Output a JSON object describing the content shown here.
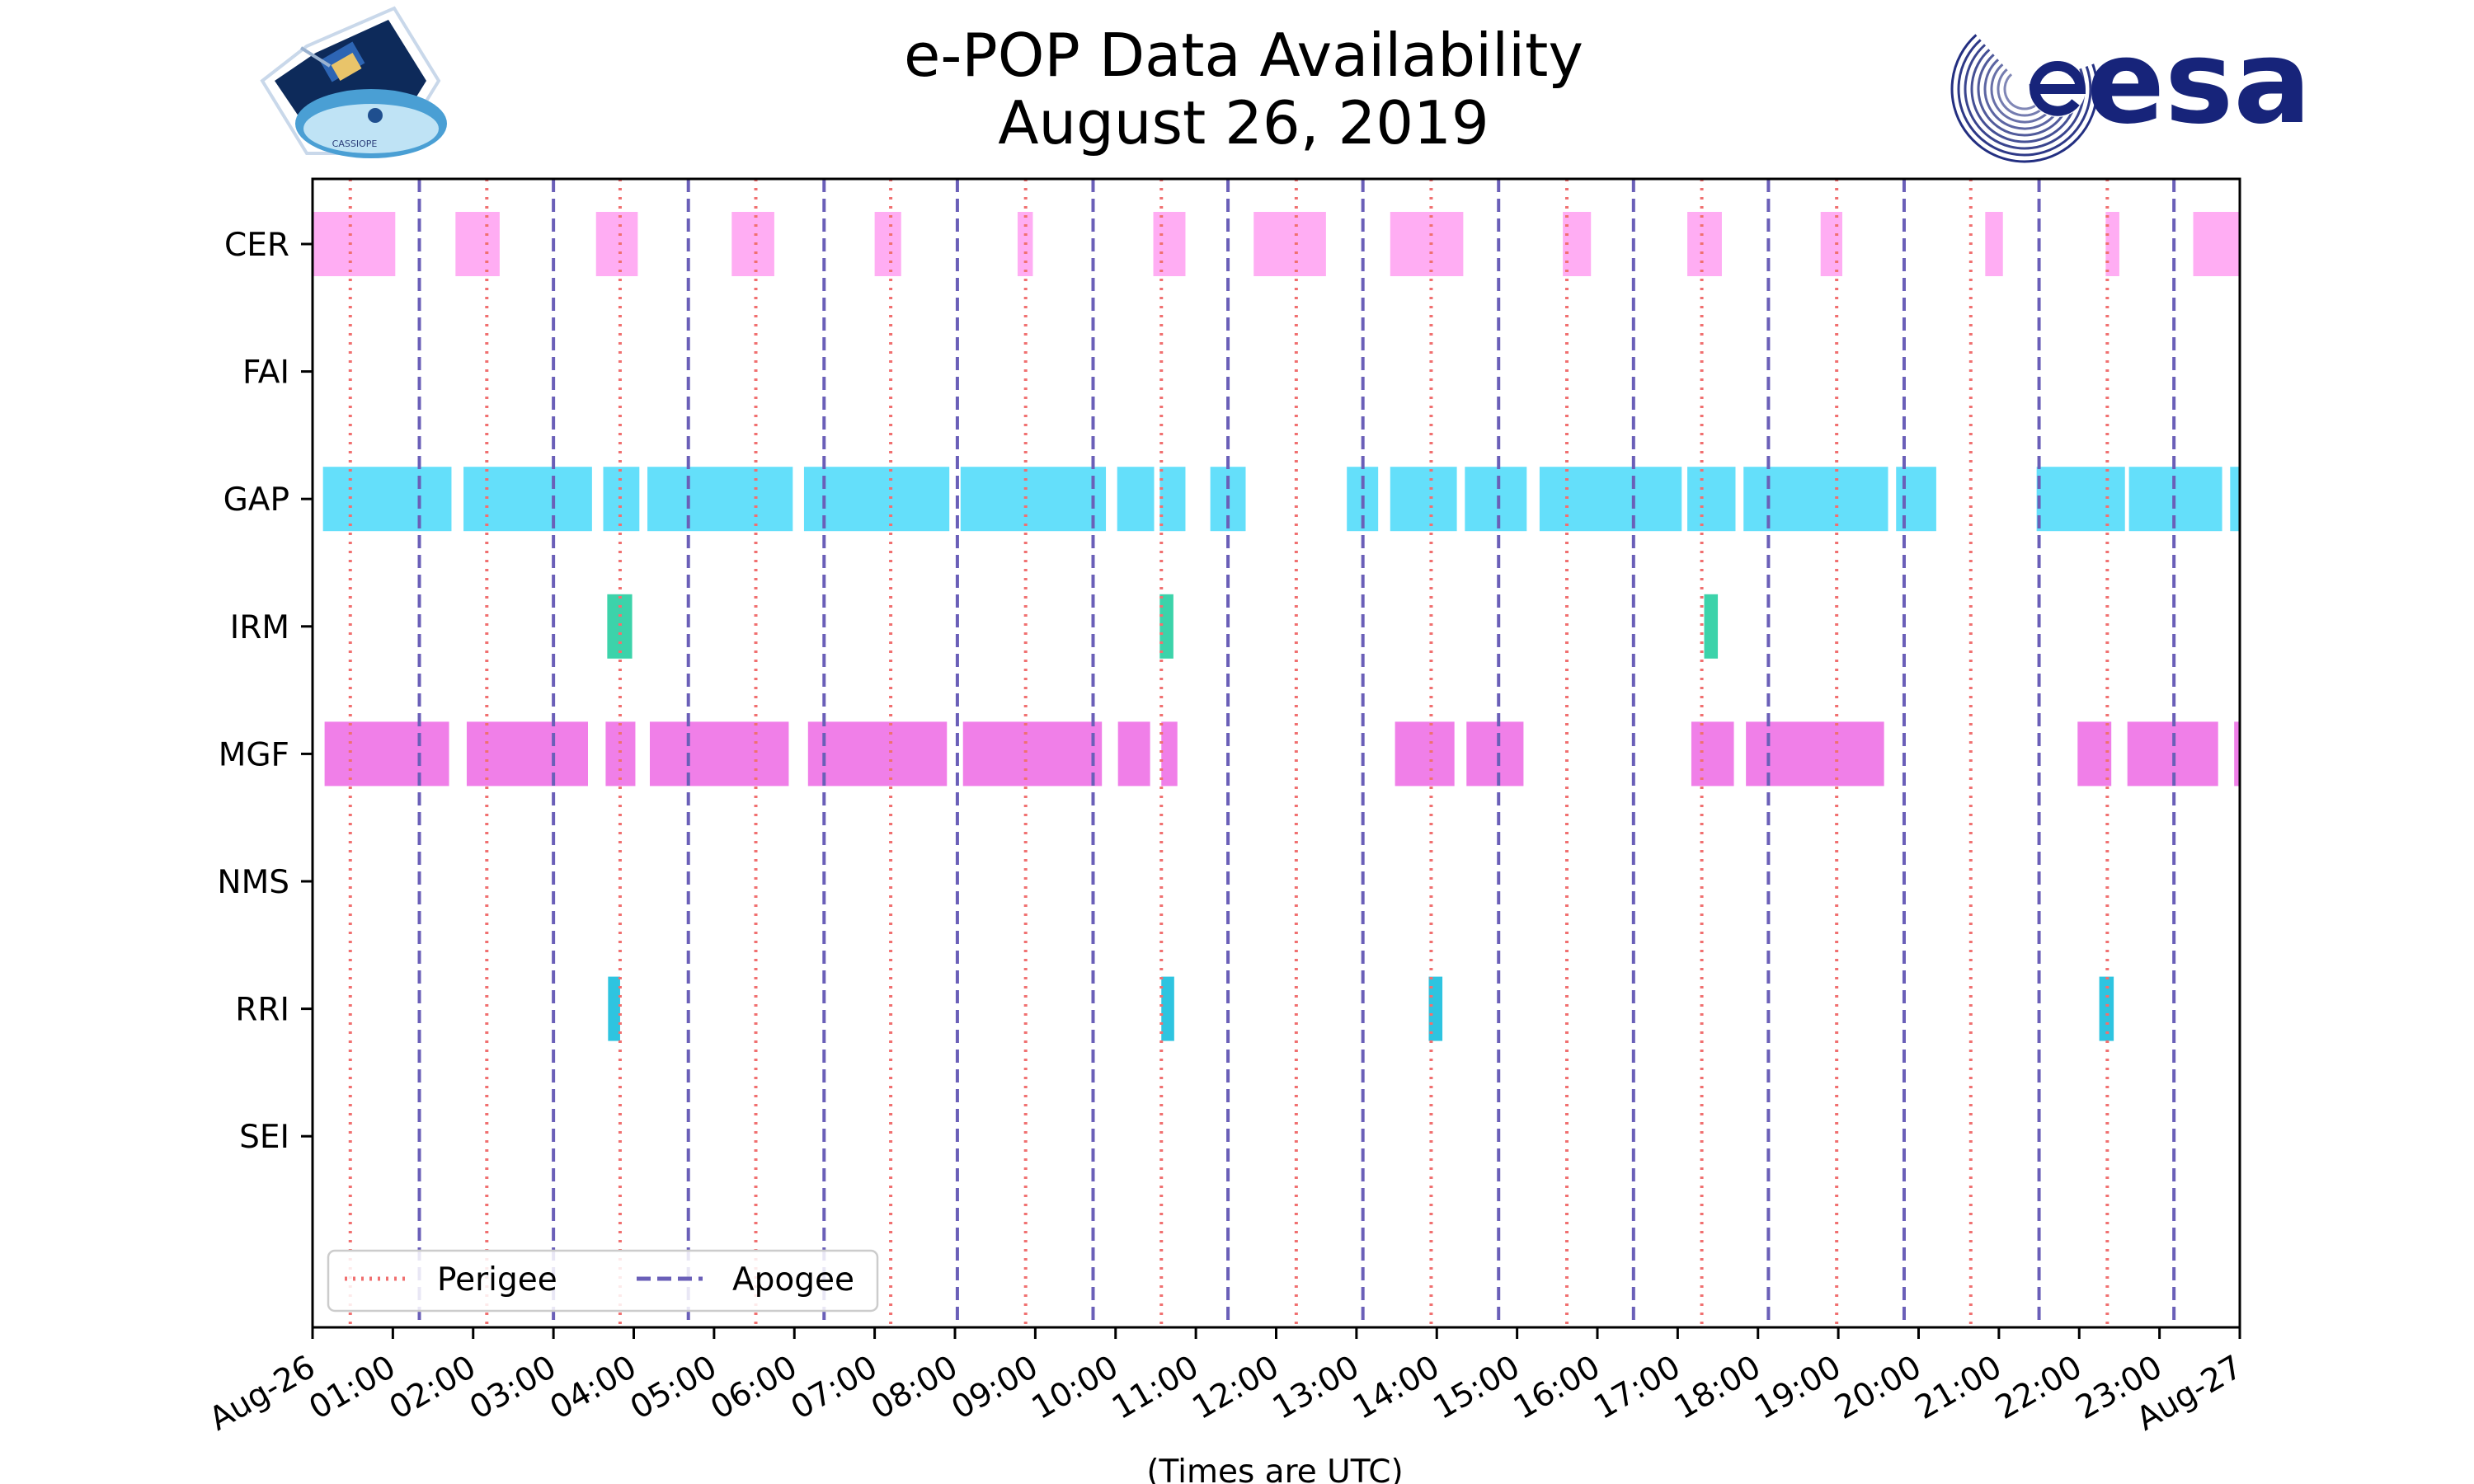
{
  "chart_data": {
    "type": "timeline",
    "title": [
      "e-POP Data Availability",
      "August 26, 2019"
    ],
    "xlabel": "(Times are UTC)",
    "xlim_hours": [
      0,
      24
    ],
    "x_ticks": [
      {
        "h": 0,
        "label": "Aug-26"
      },
      {
        "h": 1,
        "label": "01:00"
      },
      {
        "h": 2,
        "label": "02:00"
      },
      {
        "h": 3,
        "label": "03:00"
      },
      {
        "h": 4,
        "label": "04:00"
      },
      {
        "h": 5,
        "label": "05:00"
      },
      {
        "h": 6,
        "label": "06:00"
      },
      {
        "h": 7,
        "label": "07:00"
      },
      {
        "h": 8,
        "label": "08:00"
      },
      {
        "h": 9,
        "label": "09:00"
      },
      {
        "h": 10,
        "label": "10:00"
      },
      {
        "h": 11,
        "label": "11:00"
      },
      {
        "h": 12,
        "label": "12:00"
      },
      {
        "h": 13,
        "label": "13:00"
      },
      {
        "h": 14,
        "label": "14:00"
      },
      {
        "h": 15,
        "label": "15:00"
      },
      {
        "h": 16,
        "label": "16:00"
      },
      {
        "h": 17,
        "label": "17:00"
      },
      {
        "h": 18,
        "label": "18:00"
      },
      {
        "h": 19,
        "label": "19:00"
      },
      {
        "h": 20,
        "label": "20:00"
      },
      {
        "h": 21,
        "label": "21:00"
      },
      {
        "h": 22,
        "label": "22:00"
      },
      {
        "h": 23,
        "label": "23:00"
      },
      {
        "h": 24,
        "label": "Aug-27"
      }
    ],
    "instruments": [
      {
        "name": "CER",
        "color": "#ffadf3",
        "intervals": [
          [
            0,
            1.03
          ],
          [
            1.78,
            2.33
          ],
          [
            3.53,
            4.05
          ],
          [
            5.22,
            5.75
          ],
          [
            7.0,
            7.33
          ],
          [
            8.78,
            8.97
          ],
          [
            10.47,
            10.87
          ],
          [
            11.72,
            12.62
          ],
          [
            13.42,
            14.33
          ],
          [
            15.57,
            15.92
          ],
          [
            17.12,
            17.55
          ],
          [
            18.78,
            19.05
          ],
          [
            20.83,
            21.05
          ],
          [
            22.33,
            22.5
          ],
          [
            23.42,
            24.0
          ]
        ]
      },
      {
        "name": "FAI",
        "color": "#ff9f40",
        "intervals": []
      },
      {
        "name": "GAP",
        "color": "#64dffa",
        "intervals": [
          [
            0.13,
            1.73
          ],
          [
            1.88,
            3.48
          ],
          [
            3.62,
            4.07
          ],
          [
            4.17,
            5.98
          ],
          [
            6.12,
            7.93
          ],
          [
            8.07,
            9.88
          ],
          [
            10.02,
            10.48
          ],
          [
            10.55,
            10.87
          ],
          [
            11.18,
            11.62
          ],
          [
            12.88,
            13.27
          ],
          [
            13.42,
            14.25
          ],
          [
            14.35,
            15.12
          ],
          [
            15.28,
            17.05
          ],
          [
            17.12,
            17.72
          ],
          [
            17.82,
            19.62
          ],
          [
            19.72,
            20.22
          ],
          [
            21.47,
            22.57
          ],
          [
            22.62,
            23.78
          ],
          [
            23.88,
            24.0
          ]
        ]
      },
      {
        "name": "IRM",
        "color": "#3cd3aa",
        "intervals": [
          [
            3.67,
            3.98
          ],
          [
            10.55,
            10.72
          ],
          [
            17.33,
            17.5
          ]
        ]
      },
      {
        "name": "MGF",
        "color": "#f07fe8",
        "intervals": [
          [
            0.15,
            1.7
          ],
          [
            1.92,
            3.43
          ],
          [
            3.65,
            4.02
          ],
          [
            4.2,
            5.93
          ],
          [
            6.17,
            7.9
          ],
          [
            8.1,
            9.83
          ],
          [
            10.03,
            10.43
          ],
          [
            10.57,
            10.77
          ],
          [
            13.48,
            14.22
          ],
          [
            14.37,
            15.08
          ],
          [
            17.17,
            17.7
          ],
          [
            17.85,
            19.57
          ],
          [
            21.98,
            22.4
          ],
          [
            22.6,
            23.73
          ],
          [
            23.93,
            24.0
          ]
        ]
      },
      {
        "name": "NMS",
        "color": "#9b6ef3",
        "intervals": []
      },
      {
        "name": "RRI",
        "color": "#2ec4e0",
        "intervals": [
          [
            3.68,
            3.83
          ],
          [
            10.57,
            10.73
          ],
          [
            13.9,
            14.07
          ],
          [
            22.25,
            22.43
          ]
        ]
      },
      {
        "name": "SEI",
        "color": "#f5a623",
        "intervals": []
      }
    ],
    "perigee_hours": [
      0.47,
      2.17,
      3.83,
      5.52,
      7.2,
      8.88,
      10.57,
      12.25,
      13.93,
      15.62,
      17.3,
      18.98,
      20.65,
      22.35
    ],
    "apogee_hours": [
      1.33,
      3.0,
      4.68,
      6.37,
      8.03,
      9.72,
      11.4,
      13.08,
      14.77,
      16.45,
      18.13,
      19.82,
      21.5,
      23.18
    ],
    "legend": {
      "perigee": "Perigee",
      "apogee": "Apogee",
      "location": "lower-left"
    },
    "perigee_color": "#f07070",
    "apogee_color": "#6a5fb8"
  },
  "logos": {
    "left_caption": "CASSIOPE",
    "right_text": "esa",
    "right_color": "#17247a"
  }
}
